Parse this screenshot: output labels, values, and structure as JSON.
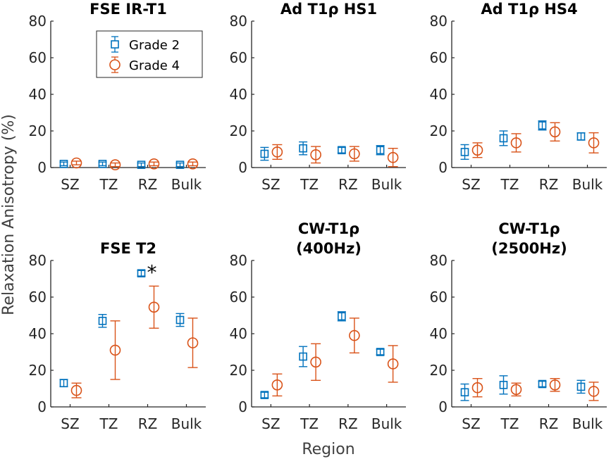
{
  "figure": {
    "ylabel": "Relaxation Anisotropy (%)",
    "xlabel": "Region",
    "legend": {
      "placement": "top-left of first panel",
      "entries": [
        "Grade 2",
        "Grade 4"
      ]
    },
    "colors": {
      "grade2": "#0072BD",
      "grade4": "#D95319",
      "axis": "#262626"
    }
  },
  "chart_data": [
    {
      "type": "scatter",
      "title_lines": [
        "FSE IR-T1"
      ],
      "categories": [
        "SZ",
        "TZ",
        "RZ",
        "Bulk"
      ],
      "ylim": [
        0,
        80
      ],
      "yticks": [
        0,
        20,
        40,
        60,
        80
      ],
      "series": [
        {
          "name": "Grade 2",
          "marker": "square",
          "values": [
            2,
            2,
            1.5,
            1.5
          ],
          "err": [
            1,
            1,
            1,
            1
          ]
        },
        {
          "name": "Grade 4",
          "marker": "circle",
          "values": [
            2.5,
            1.5,
            2,
            2
          ],
          "err": [
            1,
            1,
            1,
            1
          ]
        }
      ],
      "annotations": []
    },
    {
      "type": "scatter",
      "title_lines": [
        "Ad T1ρ HS1"
      ],
      "categories": [
        "SZ",
        "TZ",
        "RZ",
        "Bulk"
      ],
      "ylim": [
        0,
        80
      ],
      "yticks": [
        0,
        20,
        40,
        60,
        80
      ],
      "series": [
        {
          "name": "Grade 2",
          "marker": "square",
          "values": [
            7.5,
            10.5,
            9.5,
            9.5
          ],
          "err": [
            3.5,
            3.5,
            1.5,
            2.5
          ]
        },
        {
          "name": "Grade 4",
          "marker": "circle",
          "values": [
            8.5,
            7,
            7.5,
            5.5
          ],
          "err": [
            4,
            4.5,
            4,
            5
          ]
        }
      ],
      "annotations": []
    },
    {
      "type": "scatter",
      "title_lines": [
        "Ad T1ρ HS4"
      ],
      "categories": [
        "SZ",
        "TZ",
        "RZ",
        "Bulk"
      ],
      "ylim": [
        0,
        80
      ],
      "yticks": [
        0,
        20,
        40,
        60,
        80
      ],
      "series": [
        {
          "name": "Grade 2",
          "marker": "square",
          "values": [
            8.5,
            16,
            23,
            17
          ],
          "err": [
            4,
            4,
            2.5,
            2
          ]
        },
        {
          "name": "Grade 4",
          "marker": "circle",
          "values": [
            9.5,
            13.5,
            19.5,
            13.5
          ],
          "err": [
            4,
            5,
            5,
            5.5
          ]
        }
      ],
      "annotations": []
    },
    {
      "type": "scatter",
      "title_lines": [
        "FSE T2"
      ],
      "categories": [
        "SZ",
        "TZ",
        "RZ",
        "Bulk"
      ],
      "ylim": [
        0,
        80
      ],
      "yticks": [
        0,
        20,
        40,
        60,
        80
      ],
      "series": [
        {
          "name": "Grade 2",
          "marker": "square",
          "values": [
            13,
            47,
            73,
            47.5
          ],
          "err": [
            2,
            3.5,
            1.5,
            3.5
          ]
        },
        {
          "name": "Grade 4",
          "marker": "circle",
          "values": [
            9,
            31,
            54.5,
            35
          ],
          "err": [
            4,
            16,
            11.5,
            13.5
          ]
        }
      ],
      "annotations": [
        {
          "text": "*",
          "category": "RZ",
          "y": 76
        }
      ]
    },
    {
      "type": "scatter",
      "title_lines": [
        "CW-T1ρ",
        "(400Hz)"
      ],
      "categories": [
        "SZ",
        "TZ",
        "RZ",
        "Bulk"
      ],
      "ylim": [
        0,
        80
      ],
      "yticks": [
        0,
        20,
        40,
        60,
        80
      ],
      "series": [
        {
          "name": "Grade 2",
          "marker": "square",
          "values": [
            6.5,
            27.5,
            49.5,
            30
          ],
          "err": [
            1.5,
            5.5,
            2.5,
            1.5
          ]
        },
        {
          "name": "Grade 4",
          "marker": "circle",
          "values": [
            12,
            24.5,
            39,
            23.5
          ],
          "err": [
            6,
            10,
            9.5,
            10
          ]
        }
      ],
      "annotations": []
    },
    {
      "type": "scatter",
      "title_lines": [
        "CW-T1ρ",
        "(2500Hz)"
      ],
      "categories": [
        "SZ",
        "TZ",
        "RZ",
        "Bulk"
      ],
      "ylim": [
        0,
        80
      ],
      "yticks": [
        0,
        20,
        40,
        60,
        80
      ],
      "series": [
        {
          "name": "Grade 2",
          "marker": "square",
          "values": [
            8,
            12,
            12.5,
            11
          ],
          "err": [
            4.5,
            5,
            1.5,
            3.5
          ]
        },
        {
          "name": "Grade 4",
          "marker": "circle",
          "values": [
            10.5,
            9.5,
            12,
            8.5
          ],
          "err": [
            5,
            3.5,
            3.5,
            5
          ]
        }
      ],
      "annotations": []
    }
  ]
}
